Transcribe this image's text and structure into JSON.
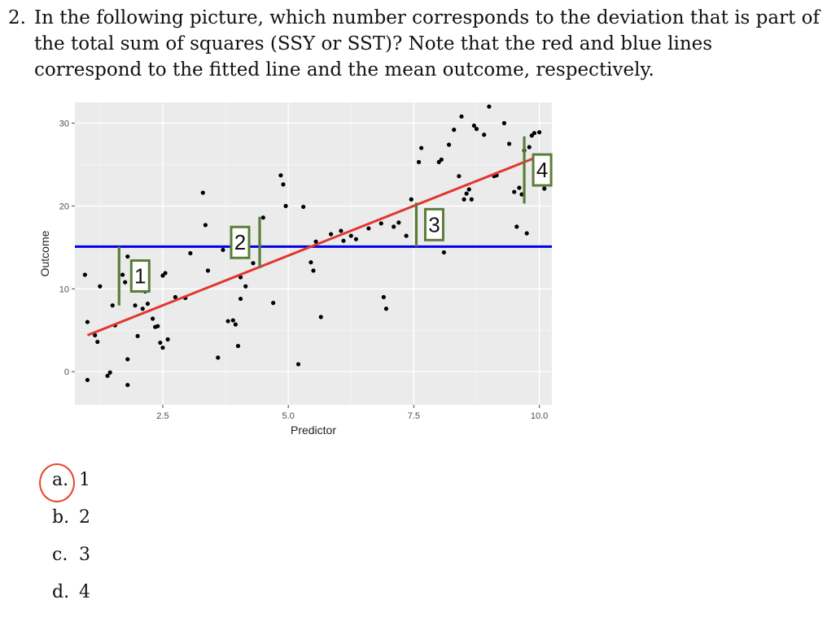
{
  "question": {
    "number": "2.",
    "text": "In the following picture, which number corresponds to the deviation that is part of the total sum of squares (SSY or SST)? Note that the red and blue lines correspond to the fitted line and the mean outcome, respectively."
  },
  "chart_data": {
    "type": "scatter",
    "xlabel": "Predictor",
    "ylabel": "Outcome",
    "xlim": [
      0.75,
      10.25
    ],
    "ylim": [
      -4,
      32.5
    ],
    "x_ticks": [
      2.5,
      5.0,
      7.5,
      10.0
    ],
    "x_tick_labels": [
      "2.5",
      "5.0",
      "7.5",
      "10.0"
    ],
    "y_ticks": [
      0,
      10,
      20,
      30
    ],
    "y_tick_labels": [
      "0",
      "10",
      "20",
      "30"
    ],
    "grid": true,
    "colors": {
      "points": "#000000",
      "fitted_line": "#e0372e",
      "mean_line": "#0000e6",
      "deviation": "#5a7d3a",
      "panel": "#ebebeb"
    },
    "mean_outcome": 15.1,
    "fitted_line": {
      "x": [
        1.0,
        9.95
      ],
      "y": [
        4.4,
        25.9
      ]
    },
    "points": [
      [
        0.95,
        11.7
      ],
      [
        1.0,
        6.0
      ],
      [
        1.0,
        -1.0
      ],
      [
        1.15,
        4.4
      ],
      [
        1.2,
        3.6
      ],
      [
        1.25,
        10.3
      ],
      [
        1.4,
        -0.5
      ],
      [
        1.45,
        -0.1
      ],
      [
        1.5,
        8.0
      ],
      [
        1.55,
        5.6
      ],
      [
        1.7,
        11.7
      ],
      [
        1.75,
        10.8
      ],
      [
        1.8,
        13.9
      ],
      [
        1.8,
        -1.6
      ],
      [
        1.8,
        1.5
      ],
      [
        1.95,
        8.0
      ],
      [
        2.0,
        4.3
      ],
      [
        2.05,
        11.1
      ],
      [
        2.1,
        7.6
      ],
      [
        2.15,
        9.7
      ],
      [
        2.2,
        8.2
      ],
      [
        2.3,
        6.4
      ],
      [
        2.35,
        5.4
      ],
      [
        2.4,
        5.5
      ],
      [
        2.45,
        3.5
      ],
      [
        2.5,
        2.9
      ],
      [
        2.5,
        11.6
      ],
      [
        2.55,
        11.9
      ],
      [
        2.6,
        3.9
      ],
      [
        2.75,
        9.0
      ],
      [
        2.95,
        8.9
      ],
      [
        3.05,
        14.3
      ],
      [
        3.3,
        21.6
      ],
      [
        3.35,
        17.7
      ],
      [
        3.4,
        12.2
      ],
      [
        3.6,
        1.7
      ],
      [
        3.7,
        14.7
      ],
      [
        3.8,
        6.1
      ],
      [
        3.9,
        6.2
      ],
      [
        3.95,
        5.7
      ],
      [
        4.0,
        3.1
      ],
      [
        4.05,
        8.8
      ],
      [
        4.05,
        11.4
      ],
      [
        4.15,
        10.3
      ],
      [
        4.3,
        13.1
      ],
      [
        4.5,
        18.6
      ],
      [
        4.7,
        8.3
      ],
      [
        4.85,
        23.7
      ],
      [
        4.9,
        22.6
      ],
      [
        4.95,
        20.0
      ],
      [
        5.2,
        0.9
      ],
      [
        5.3,
        19.9
      ],
      [
        5.45,
        13.2
      ],
      [
        5.5,
        12.2
      ],
      [
        5.55,
        15.7
      ],
      [
        5.65,
        6.6
      ],
      [
        5.85,
        16.6
      ],
      [
        6.05,
        17.0
      ],
      [
        6.1,
        15.8
      ],
      [
        6.25,
        16.4
      ],
      [
        6.35,
        16.0
      ],
      [
        6.6,
        17.3
      ],
      [
        6.85,
        17.9
      ],
      [
        6.9,
        9.0
      ],
      [
        6.95,
        7.6
      ],
      [
        7.1,
        17.5
      ],
      [
        7.2,
        18.0
      ],
      [
        7.35,
        16.4
      ],
      [
        7.45,
        20.8
      ],
      [
        7.6,
        25.3
      ],
      [
        7.65,
        27.0
      ],
      [
        7.85,
        17.4
      ],
      [
        8.0,
        25.3
      ],
      [
        8.05,
        25.6
      ],
      [
        8.1,
        14.4
      ],
      [
        8.2,
        27.4
      ],
      [
        8.3,
        29.2
      ],
      [
        8.4,
        23.6
      ],
      [
        8.45,
        30.8
      ],
      [
        8.5,
        20.8
      ],
      [
        8.55,
        21.5
      ],
      [
        8.6,
        22.0
      ],
      [
        8.65,
        20.8
      ],
      [
        8.7,
        29.7
      ],
      [
        8.75,
        29.3
      ],
      [
        8.9,
        28.6
      ],
      [
        9.1,
        23.6
      ],
      [
        9.15,
        23.7
      ],
      [
        9.3,
        30.0
      ],
      [
        9.5,
        21.7
      ],
      [
        9.55,
        17.5
      ],
      [
        9.6,
        22.2
      ],
      [
        9.65,
        21.4
      ],
      [
        9.7,
        26.7
      ],
      [
        9.75,
        16.7
      ],
      [
        9.8,
        27.1
      ],
      [
        9.85,
        28.5
      ],
      [
        10.0,
        23.0
      ],
      [
        9.95,
        22.8
      ],
      [
        10.0,
        28.9
      ],
      [
        10.05,
        25.2
      ],
      [
        10.1,
        22.1
      ],
      [
        9.0,
        32.0
      ],
      [
        9.4,
        27.5
      ],
      [
        9.9,
        28.8
      ]
    ],
    "deviations": [
      {
        "label": "1",
        "x": 1.63,
        "y_from": 8.0,
        "y_to": 15.1
      },
      {
        "label": "2",
        "x": 4.43,
        "y_from": 12.5,
        "y_to": 18.7
      },
      {
        "label": "3",
        "x": 7.55,
        "y_from": 15.1,
        "y_to": 20.4
      },
      {
        "label": "4",
        "x": 9.7,
        "y_from": 20.3,
        "y_to": 28.4
      }
    ]
  },
  "options": [
    {
      "letter": "a.",
      "value": "1",
      "selected": true
    },
    {
      "letter": "b.",
      "value": "2",
      "selected": false
    },
    {
      "letter": "c.",
      "value": "3",
      "selected": false
    },
    {
      "letter": "d.",
      "value": "4",
      "selected": false
    }
  ]
}
